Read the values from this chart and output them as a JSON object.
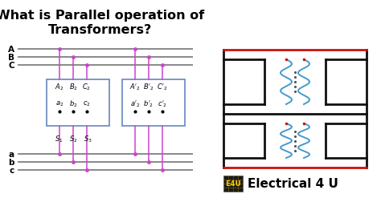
{
  "title_line1": "What is Parallel operation of",
  "title_line2": "Transformers?",
  "bg_color": "#ffffff",
  "title_color": "#000000",
  "title_fontsize": 11.5,
  "line_color_gray": "#888888",
  "line_color_magenta": "#cc44cc",
  "line_color_black": "#111111",
  "line_color_red": "#cc1111",
  "line_color_blue": "#4499cc",
  "box_edge_color": "#6688bb",
  "electrical4u_text": "Electrical 4 U",
  "e4u_bg": "#1a1a1a",
  "e4u_text": "E4U",
  "e4u_color": "#ffcc00"
}
